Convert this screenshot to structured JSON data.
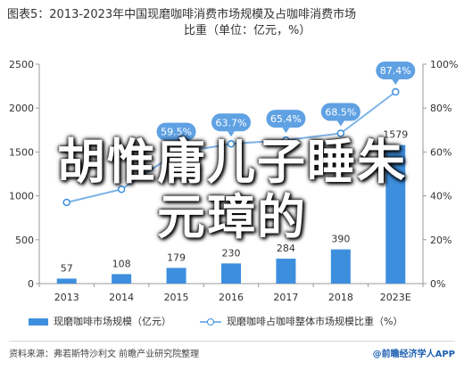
{
  "header": {
    "title_line1": "图表5：2013-2023年中国现磨咖啡消费市场规模及占咖啡消费市场",
    "title_line2": "比重（单位：亿元，%）"
  },
  "chart_data": {
    "type": "bar",
    "categories": [
      "2013",
      "2014",
      "2015",
      "2016",
      "2017",
      "2018",
      "2023E"
    ],
    "series": [
      {
        "name": "现磨咖啡市场规模（亿元）",
        "type": "bar",
        "axis": "left",
        "values": [
          57,
          108,
          179,
          230,
          284,
          390,
          1579
        ],
        "labels": [
          "57",
          "108",
          "179",
          "230",
          "284",
          "390",
          "1579"
        ],
        "color": "#3d8fde"
      },
      {
        "name": "现磨咖啡占咖啡整体市场规模比重（%）",
        "type": "line",
        "axis": "right",
        "values": [
          37,
          43,
          59.5,
          63.7,
          65.4,
          68.5,
          87.4
        ],
        "labels": [
          "",
          "",
          "59.5%",
          "63.7%",
          "65.4%",
          "68.5%",
          "87.4%"
        ],
        "color": "#7fb3e8"
      }
    ],
    "y_left": {
      "min": 0,
      "max": 2500,
      "ticks": [
        0,
        500,
        1000,
        1500,
        2000,
        2500
      ]
    },
    "y_right": {
      "min": 0,
      "max": 100,
      "ticks": [
        "0%",
        "20%",
        "40%",
        "60%",
        "80%",
        "100%"
      ]
    },
    "grid": false,
    "legend": "bottom"
  },
  "legend": {
    "bar_label": "现磨咖啡市场规模（亿元）",
    "line_label": "现磨咖啡占咖啡整体市场规模比重（%）"
  },
  "footer": {
    "source": "资料来源：弗若斯特沙利文 前瞻产业研究院整理",
    "brand": "@前瞻经济学人APP"
  },
  "overlay": {
    "line1": "胡惟庸儿子睡朱",
    "line2": "元璋的"
  },
  "colors": {
    "bar": "#3d8fde",
    "line": "#7fb3e8",
    "callout": "#5fa1e3"
  }
}
